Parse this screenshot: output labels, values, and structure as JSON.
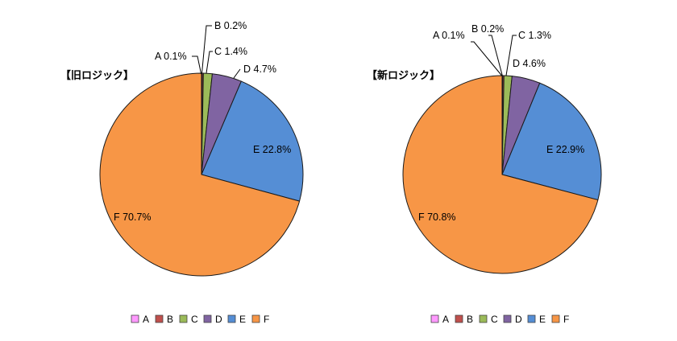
{
  "chart_data": [
    {
      "type": "pie",
      "title": "【旧ロジック】",
      "categories": [
        "A",
        "B",
        "C",
        "D",
        "E",
        "F"
      ],
      "values": [
        0.1,
        0.2,
        1.4,
        4.7,
        22.8,
        70.7
      ],
      "labels": [
        "A 0.1%",
        "B 0.2%",
        "C 1.4%",
        "D 4.7%",
        "E 22.8%",
        "F 70.7%"
      ],
      "colors": [
        "#ff99ff",
        "#c0504d",
        "#9bbb59",
        "#8064a2",
        "#558ed5",
        "#f79646"
      ],
      "legend": "bottom"
    },
    {
      "type": "pie",
      "title": "【新ロジック】",
      "categories": [
        "A",
        "B",
        "C",
        "D",
        "E",
        "F"
      ],
      "values": [
        0.1,
        0.2,
        1.3,
        4.6,
        22.9,
        70.8
      ],
      "labels": [
        "A 0.1%",
        "B 0.2%",
        "C 1.3%",
        "D 4.6%",
        "E 22.9%",
        "F 70.8%"
      ],
      "colors": [
        "#ff99ff",
        "#c0504d",
        "#9bbb59",
        "#8064a2",
        "#558ed5",
        "#f79646"
      ],
      "legend": "bottom"
    }
  ]
}
